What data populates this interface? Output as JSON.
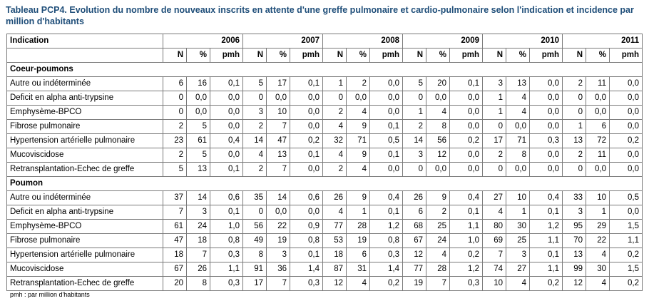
{
  "title": "Tableau PCP4. Evolution du nombre de nouveaux inscrits en attente d'une greffe pulmonaire et cardio-pulmonaire selon l'indication et incidence par million d'habitants",
  "header": {
    "indication_label": "Indication",
    "years": [
      "2006",
      "2007",
      "2008",
      "2009",
      "2010",
      "2011"
    ],
    "sub": [
      "N",
      "%",
      "pmh"
    ]
  },
  "sections": [
    {
      "name": "Coeur-poumons",
      "rows": [
        {
          "label": "Autre ou indéterminée",
          "cells": [
            "6",
            "16",
            "0,1",
            "5",
            "17",
            "0,1",
            "1",
            "2",
            "0,0",
            "5",
            "20",
            "0,1",
            "3",
            "13",
            "0,0",
            "2",
            "11",
            "0,0"
          ]
        },
        {
          "label": "Deficit en alpha anti-trypsine",
          "cells": [
            "0",
            "0,0",
            "0,0",
            "0",
            "0,0",
            "0,0",
            "0",
            "0,0",
            "0,0",
            "0",
            "0,0",
            "0,0",
            "1",
            "4",
            "0,0",
            "0",
            "0,0",
            "0,0"
          ]
        },
        {
          "label": "Emphysème-BPCO",
          "cells": [
            "0",
            "0,0",
            "0,0",
            "3",
            "10",
            "0,0",
            "2",
            "4",
            "0,0",
            "1",
            "4",
            "0,0",
            "1",
            "4",
            "0,0",
            "0",
            "0,0",
            "0,0"
          ]
        },
        {
          "label": "Fibrose pulmonaire",
          "cells": [
            "2",
            "5",
            "0,0",
            "2",
            "7",
            "0,0",
            "4",
            "9",
            "0,1",
            "2",
            "8",
            "0,0",
            "0",
            "0,0",
            "0,0",
            "1",
            "6",
            "0,0"
          ]
        },
        {
          "label": "Hypertension artérielle pulmonaire",
          "cells": [
            "23",
            "61",
            "0,4",
            "14",
            "47",
            "0,2",
            "32",
            "71",
            "0,5",
            "14",
            "56",
            "0,2",
            "17",
            "71",
            "0,3",
            "13",
            "72",
            "0,2"
          ]
        },
        {
          "label": "Mucoviscidose",
          "cells": [
            "2",
            "5",
            "0,0",
            "4",
            "13",
            "0,1",
            "4",
            "9",
            "0,1",
            "3",
            "12",
            "0,0",
            "2",
            "8",
            "0,0",
            "2",
            "11",
            "0,0"
          ]
        },
        {
          "label": "Retransplantation-Echec de greffe",
          "cells": [
            "5",
            "13",
            "0,1",
            "2",
            "7",
            "0,0",
            "2",
            "4",
            "0,0",
            "0",
            "0,0",
            "0,0",
            "0",
            "0,0",
            "0,0",
            "0",
            "0,0",
            "0,0"
          ]
        }
      ]
    },
    {
      "name": "Poumon",
      "rows": [
        {
          "label": "Autre ou indéterminée",
          "cells": [
            "37",
            "14",
            "0,6",
            "35",
            "14",
            "0,6",
            "26",
            "9",
            "0,4",
            "26",
            "9",
            "0,4",
            "27",
            "10",
            "0,4",
            "33",
            "10",
            "0,5"
          ]
        },
        {
          "label": "Deficit en alpha anti-trypsine",
          "cells": [
            "7",
            "3",
            "0,1",
            "0",
            "0,0",
            "0,0",
            "4",
            "1",
            "0,1",
            "6",
            "2",
            "0,1",
            "4",
            "1",
            "0,1",
            "3",
            "1",
            "0,0"
          ]
        },
        {
          "label": "Emphysème-BPCO",
          "cells": [
            "61",
            "24",
            "1,0",
            "56",
            "22",
            "0,9",
            "77",
            "28",
            "1,2",
            "68",
            "25",
            "1,1",
            "80",
            "30",
            "1,2",
            "95",
            "29",
            "1,5"
          ]
        },
        {
          "label": "Fibrose pulmonaire",
          "cells": [
            "47",
            "18",
            "0,8",
            "49",
            "19",
            "0,8",
            "53",
            "19",
            "0,8",
            "67",
            "24",
            "1,0",
            "69",
            "25",
            "1,1",
            "70",
            "22",
            "1,1"
          ]
        },
        {
          "label": "Hypertension artérielle pulmonaire",
          "cells": [
            "18",
            "7",
            "0,3",
            "8",
            "3",
            "0,1",
            "18",
            "6",
            "0,3",
            "12",
            "4",
            "0,2",
            "7",
            "3",
            "0,1",
            "13",
            "4",
            "0,2"
          ]
        },
        {
          "label": "Mucoviscidose",
          "cells": [
            "67",
            "26",
            "1,1",
            "91",
            "36",
            "1,4",
            "87",
            "31",
            "1,4",
            "77",
            "28",
            "1,2",
            "74",
            "27",
            "1,1",
            "99",
            "30",
            "1,5"
          ]
        },
        {
          "label": "Retransplantation-Echec de greffe",
          "cells": [
            "20",
            "8",
            "0,3",
            "17",
            "7",
            "0,3",
            "12",
            "4",
            "0,2",
            "19",
            "7",
            "0,3",
            "10",
            "4",
            "0,2",
            "12",
            "4",
            "0,2"
          ]
        }
      ]
    }
  ],
  "footnote": "pmh : par million d'habitants"
}
